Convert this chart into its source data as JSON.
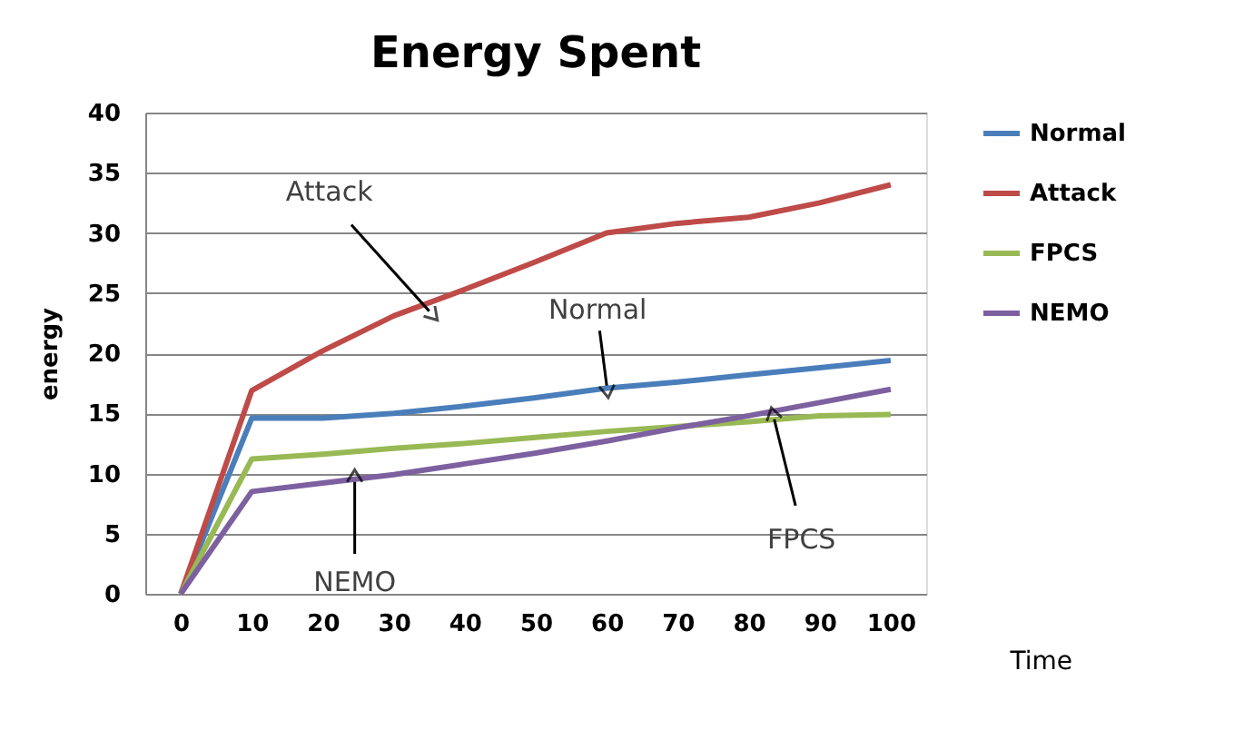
{
  "chart_data": {
    "type": "line",
    "title": "Energy Spent",
    "xlabel": "Time",
    "ylabel": "energy",
    "x": [
      0,
      10,
      20,
      30,
      40,
      50,
      60,
      70,
      80,
      90,
      100
    ],
    "xlim": [
      -5,
      105
    ],
    "xticks": [
      0,
      10,
      20,
      30,
      40,
      50,
      60,
      70,
      80,
      90,
      100
    ],
    "ylim": [
      0,
      40
    ],
    "yticks": [
      0,
      5,
      10,
      15,
      20,
      25,
      30,
      35,
      40
    ],
    "grid": "y",
    "legend": "right",
    "marker": "none",
    "line_style": "solid",
    "series": [
      {
        "name": "Normal",
        "color": "#4a7ebb",
        "values": [
          0,
          14.6,
          14.6,
          15.0,
          15.6,
          16.3,
          17.1,
          17.6,
          18.2,
          18.8,
          19.4
        ]
      },
      {
        "name": "Attack",
        "color": "#be4b48",
        "values": [
          0,
          16.9,
          20.2,
          23.1,
          25.3,
          27.6,
          30.0,
          30.8,
          31.3,
          32.5,
          34.0
        ]
      },
      {
        "name": "FPCS",
        "color": "#98b954",
        "values": [
          0,
          11.2,
          11.6,
          12.1,
          12.5,
          13.0,
          13.5,
          13.9,
          14.3,
          14.8,
          14.9
        ]
      },
      {
        "name": "NEMO",
        "color": "#7d60a0",
        "values": [
          0,
          8.5,
          9.2,
          9.9,
          10.8,
          11.7,
          12.7,
          13.8,
          14.8,
          15.9,
          17.0
        ]
      }
    ],
    "annotations": [
      {
        "text": "Attack",
        "x": 35,
        "y": 23.5
      },
      {
        "text": "Normal",
        "x": 60,
        "y": 17.3
      },
      {
        "text": "FPCS",
        "x": 83.6,
        "y": 14.5
      },
      {
        "text": "NEMO",
        "x": 24.5,
        "y": 9.3
      }
    ]
  }
}
